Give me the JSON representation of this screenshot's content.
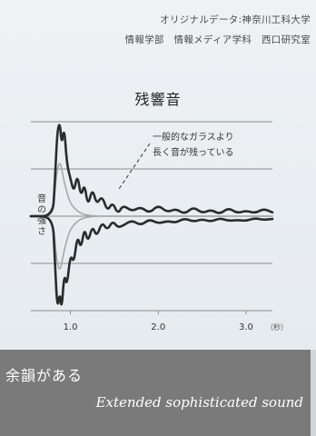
{
  "credit": {
    "line1": "オリジナルデータ:神奈川工科大学",
    "line2": "情報学部　情報メディア学科　西口研究室"
  },
  "caption": {
    "ja": "余韻がある",
    "en": "Extended sophisticated sound"
  },
  "colors": {
    "background": "#e6ebef",
    "caption_band": "#7a7a7a",
    "dark_series": "#2b2b2b",
    "light_series": "#a8a8a8",
    "grid": "#8a8a8a"
  },
  "chart_data": {
    "type": "line",
    "title": "残響音",
    "ylabel": "音の強さ",
    "xlabel": "",
    "x_unit": "（秒）",
    "x_ticks": [
      {
        "value": 1.0,
        "label": "1.0"
      },
      {
        "value": 2.0,
        "label": "2.0"
      },
      {
        "value": 3.0,
        "label": "3.0"
      }
    ],
    "xlim": [
      0.55,
      3.3
    ],
    "ylim": [
      -1.0,
      1.0
    ],
    "gridlines_y": [
      -1.0,
      -0.5,
      0.0,
      0.5,
      1.0
    ],
    "annotation": {
      "line1": "一般的なガラスより",
      "line2": "長く音が残っている"
    },
    "series": [
      {
        "color": "#2b2b2b",
        "envelope": "upper",
        "x": [
          0.55,
          0.8,
          0.82,
          0.85,
          0.88,
          0.9,
          0.93,
          0.96,
          1.0,
          1.04,
          1.08,
          1.12,
          1.16,
          1.2,
          1.25,
          1.3,
          1.36,
          1.42,
          1.48,
          1.54,
          1.6,
          1.7,
          1.8,
          1.9,
          2.0,
          2.1,
          2.2,
          2.3,
          2.4,
          2.5,
          2.6,
          2.7,
          2.8,
          2.9,
          3.0,
          3.1,
          3.2,
          3.3
        ],
        "y": [
          0.0,
          0.0,
          0.3,
          0.9,
          1.0,
          0.75,
          0.95,
          0.55,
          0.4,
          0.25,
          0.45,
          0.2,
          0.35,
          0.1,
          0.3,
          0.12,
          0.22,
          0.05,
          0.15,
          0.02,
          0.12,
          0.05,
          0.1,
          0.03,
          0.12,
          0.04,
          0.08,
          0.02,
          0.1,
          0.03,
          0.07,
          0.02,
          0.09,
          0.03,
          0.06,
          0.03,
          0.08,
          0.04
        ]
      },
      {
        "color": "#2b2b2b",
        "envelope": "lower",
        "x": [
          0.55,
          0.8,
          0.82,
          0.85,
          0.88,
          0.9,
          0.93,
          0.96,
          1.0,
          1.04,
          1.08,
          1.12,
          1.16,
          1.2,
          1.25,
          1.3,
          1.36,
          1.42,
          1.48,
          1.54,
          1.6,
          1.7,
          1.8,
          1.9,
          2.0,
          2.1,
          2.2,
          2.3,
          2.4,
          2.5,
          2.6,
          2.7,
          2.8,
          2.9,
          3.0,
          3.1,
          3.2,
          3.3
        ],
        "y": [
          0.0,
          0.0,
          -0.4,
          -1.0,
          -0.8,
          -1.0,
          -0.6,
          -0.75,
          -0.4,
          -0.5,
          -0.2,
          -0.35,
          -0.12,
          -0.28,
          -0.1,
          -0.22,
          -0.06,
          -0.15,
          -0.05,
          -0.12,
          -0.1,
          -0.04,
          -0.1,
          -0.03,
          -0.08,
          -0.05,
          -0.07,
          -0.02,
          -0.06,
          -0.03,
          -0.06,
          -0.02,
          -0.05,
          -0.04,
          -0.05,
          -0.02,
          -0.04,
          -0.03
        ]
      },
      {
        "color": "#a8a8a8",
        "envelope": "upper",
        "x": [
          0.55,
          0.8,
          0.84,
          0.88,
          0.92,
          0.96,
          1.0,
          1.05,
          1.1,
          1.15,
          1.2,
          1.3,
          1.4,
          1.6,
          2.0,
          3.3
        ],
        "y": [
          0.0,
          0.0,
          0.45,
          0.6,
          0.4,
          0.25,
          0.14,
          0.08,
          0.04,
          0.02,
          0.01,
          0.0,
          0.0,
          0.0,
          0.0,
          0.0
        ]
      },
      {
        "color": "#a8a8a8",
        "envelope": "lower",
        "x": [
          0.55,
          0.8,
          0.84,
          0.88,
          0.92,
          0.96,
          1.0,
          1.05,
          1.1,
          1.15,
          1.2,
          1.3,
          1.4,
          1.6,
          2.0,
          3.3
        ],
        "y": [
          0.0,
          0.0,
          -0.45,
          -0.6,
          -0.4,
          -0.25,
          -0.14,
          -0.08,
          -0.04,
          -0.02,
          -0.01,
          0.0,
          0.0,
          0.0,
          0.0,
          0.0
        ]
      }
    ]
  }
}
